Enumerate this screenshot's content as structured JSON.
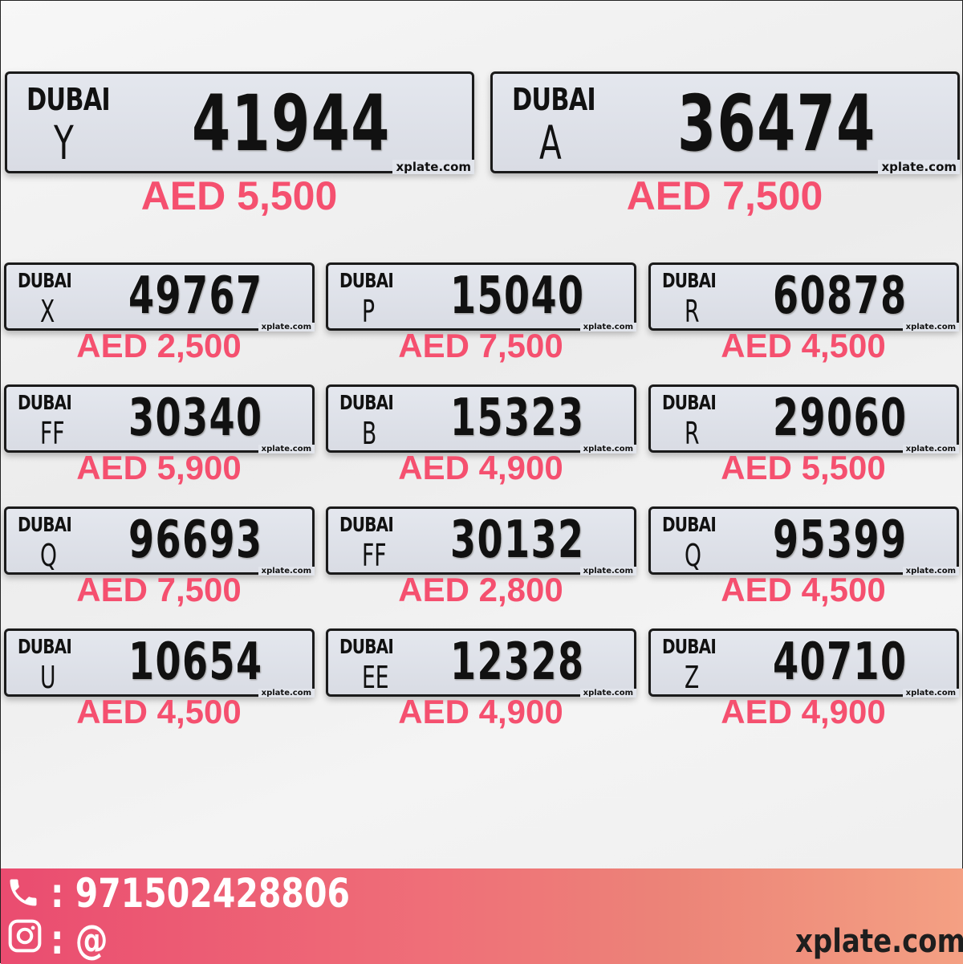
{
  "featured": [
    {
      "emirate": "DUBAI",
      "code": "Y",
      "number": "41944",
      "watermark": "xplate.com",
      "price": "AED 5,500"
    },
    {
      "emirate": "DUBAI",
      "code": "A",
      "number": "36474",
      "watermark": "xplate.com",
      "price": "AED 7,500"
    }
  ],
  "plates": [
    {
      "emirate": "DUBAI",
      "code": "X",
      "number": "49767",
      "watermark": "xplate.com",
      "price": "AED 2,500"
    },
    {
      "emirate": "DUBAI",
      "code": "P",
      "number": "15040",
      "watermark": "xplate.com",
      "price": "AED 7,500"
    },
    {
      "emirate": "DUBAI",
      "code": "R",
      "number": "60878",
      "watermark": "xplate.com",
      "price": "AED 4,500"
    },
    {
      "emirate": "DUBAI",
      "code": "FF",
      "number": "30340",
      "watermark": "xplate.com",
      "price": "AED 5,900"
    },
    {
      "emirate": "DUBAI",
      "code": "B",
      "number": "15323",
      "watermark": "xplate.com",
      "price": "AED 4,900"
    },
    {
      "emirate": "DUBAI",
      "code": "R",
      "number": "29060",
      "watermark": "xplate.com",
      "price": "AED 5,500"
    },
    {
      "emirate": "DUBAI",
      "code": "Q",
      "number": "96693",
      "watermark": "xplate.com",
      "price": "AED 7,500"
    },
    {
      "emirate": "DUBAI",
      "code": "FF",
      "number": "30132",
      "watermark": "xplate.com",
      "price": "AED 2,800"
    },
    {
      "emirate": "DUBAI",
      "code": "Q",
      "number": "95399",
      "watermark": "xplate.com",
      "price": "AED 4,500"
    },
    {
      "emirate": "DUBAI",
      "code": "U",
      "number": "10654",
      "watermark": "xplate.com",
      "price": "AED 4,500"
    },
    {
      "emirate": "DUBAI",
      "code": "EE",
      "number": "12328",
      "watermark": "xplate.com",
      "price": "AED 4,900"
    },
    {
      "emirate": "DUBAI",
      "code": "Z",
      "number": "40710",
      "watermark": "xplate.com",
      "price": "AED 4,900"
    }
  ],
  "footer": {
    "phone": ": 971502428806",
    "instagram": ": @",
    "brand": "xplate.com",
    "phone_icon": "phone-icon",
    "instagram_icon": "instagram-icon"
  },
  "colors": {
    "price": "#f5506f",
    "footer_start": "#ea4c70",
    "footer_end": "#f4a083"
  }
}
